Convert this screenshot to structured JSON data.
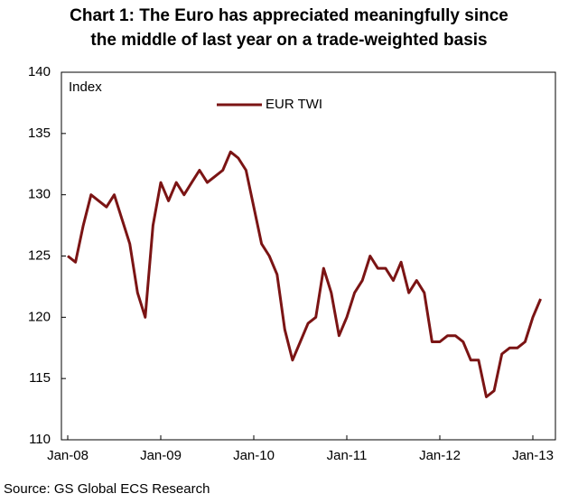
{
  "chart_data": {
    "type": "line",
    "title": "Chart 1: The  Euro has appreciated  meaningfully since the middle of last year on a trade-weighted  basis",
    "annotation": "Index",
    "source": "Source: GS Global ECS Research",
    "categories": [
      "Jan-08",
      null,
      null,
      null,
      null,
      null,
      null,
      null,
      null,
      null,
      null,
      null,
      "Jan-09",
      null,
      null,
      null,
      null,
      null,
      null,
      null,
      null,
      null,
      null,
      null,
      "Jan-10",
      null,
      null,
      null,
      null,
      null,
      null,
      null,
      null,
      null,
      null,
      null,
      "Jan-11",
      null,
      null,
      null,
      null,
      null,
      null,
      null,
      null,
      null,
      null,
      null,
      "Jan-12",
      null,
      null,
      null,
      null,
      null,
      null,
      null,
      null,
      null,
      null,
      null,
      "Jan-13",
      null
    ],
    "series": [
      {
        "name": "EUR TWI",
        "color": "#7b1414",
        "values": [
          125,
          124.5,
          127.5,
          130,
          129.5,
          129,
          130,
          128,
          126,
          122,
          120,
          127.5,
          131,
          129.5,
          131,
          130,
          131,
          132,
          131,
          131.5,
          132,
          133.5,
          133,
          132,
          129,
          126,
          125,
          123.5,
          119,
          116.5,
          118,
          119.5,
          120,
          124,
          122,
          118.5,
          120,
          122,
          123,
          125,
          124,
          124,
          123,
          124.5,
          122,
          123,
          122,
          118,
          118,
          118.5,
          118.5,
          118,
          116.5,
          116.5,
          113.5,
          114,
          117,
          117.5,
          117.5,
          118,
          120,
          121.5
        ]
      }
    ],
    "ylim": [
      110,
      140
    ],
    "yticks": [
      110,
      115,
      120,
      125,
      130,
      135,
      140
    ],
    "legend": "top"
  }
}
